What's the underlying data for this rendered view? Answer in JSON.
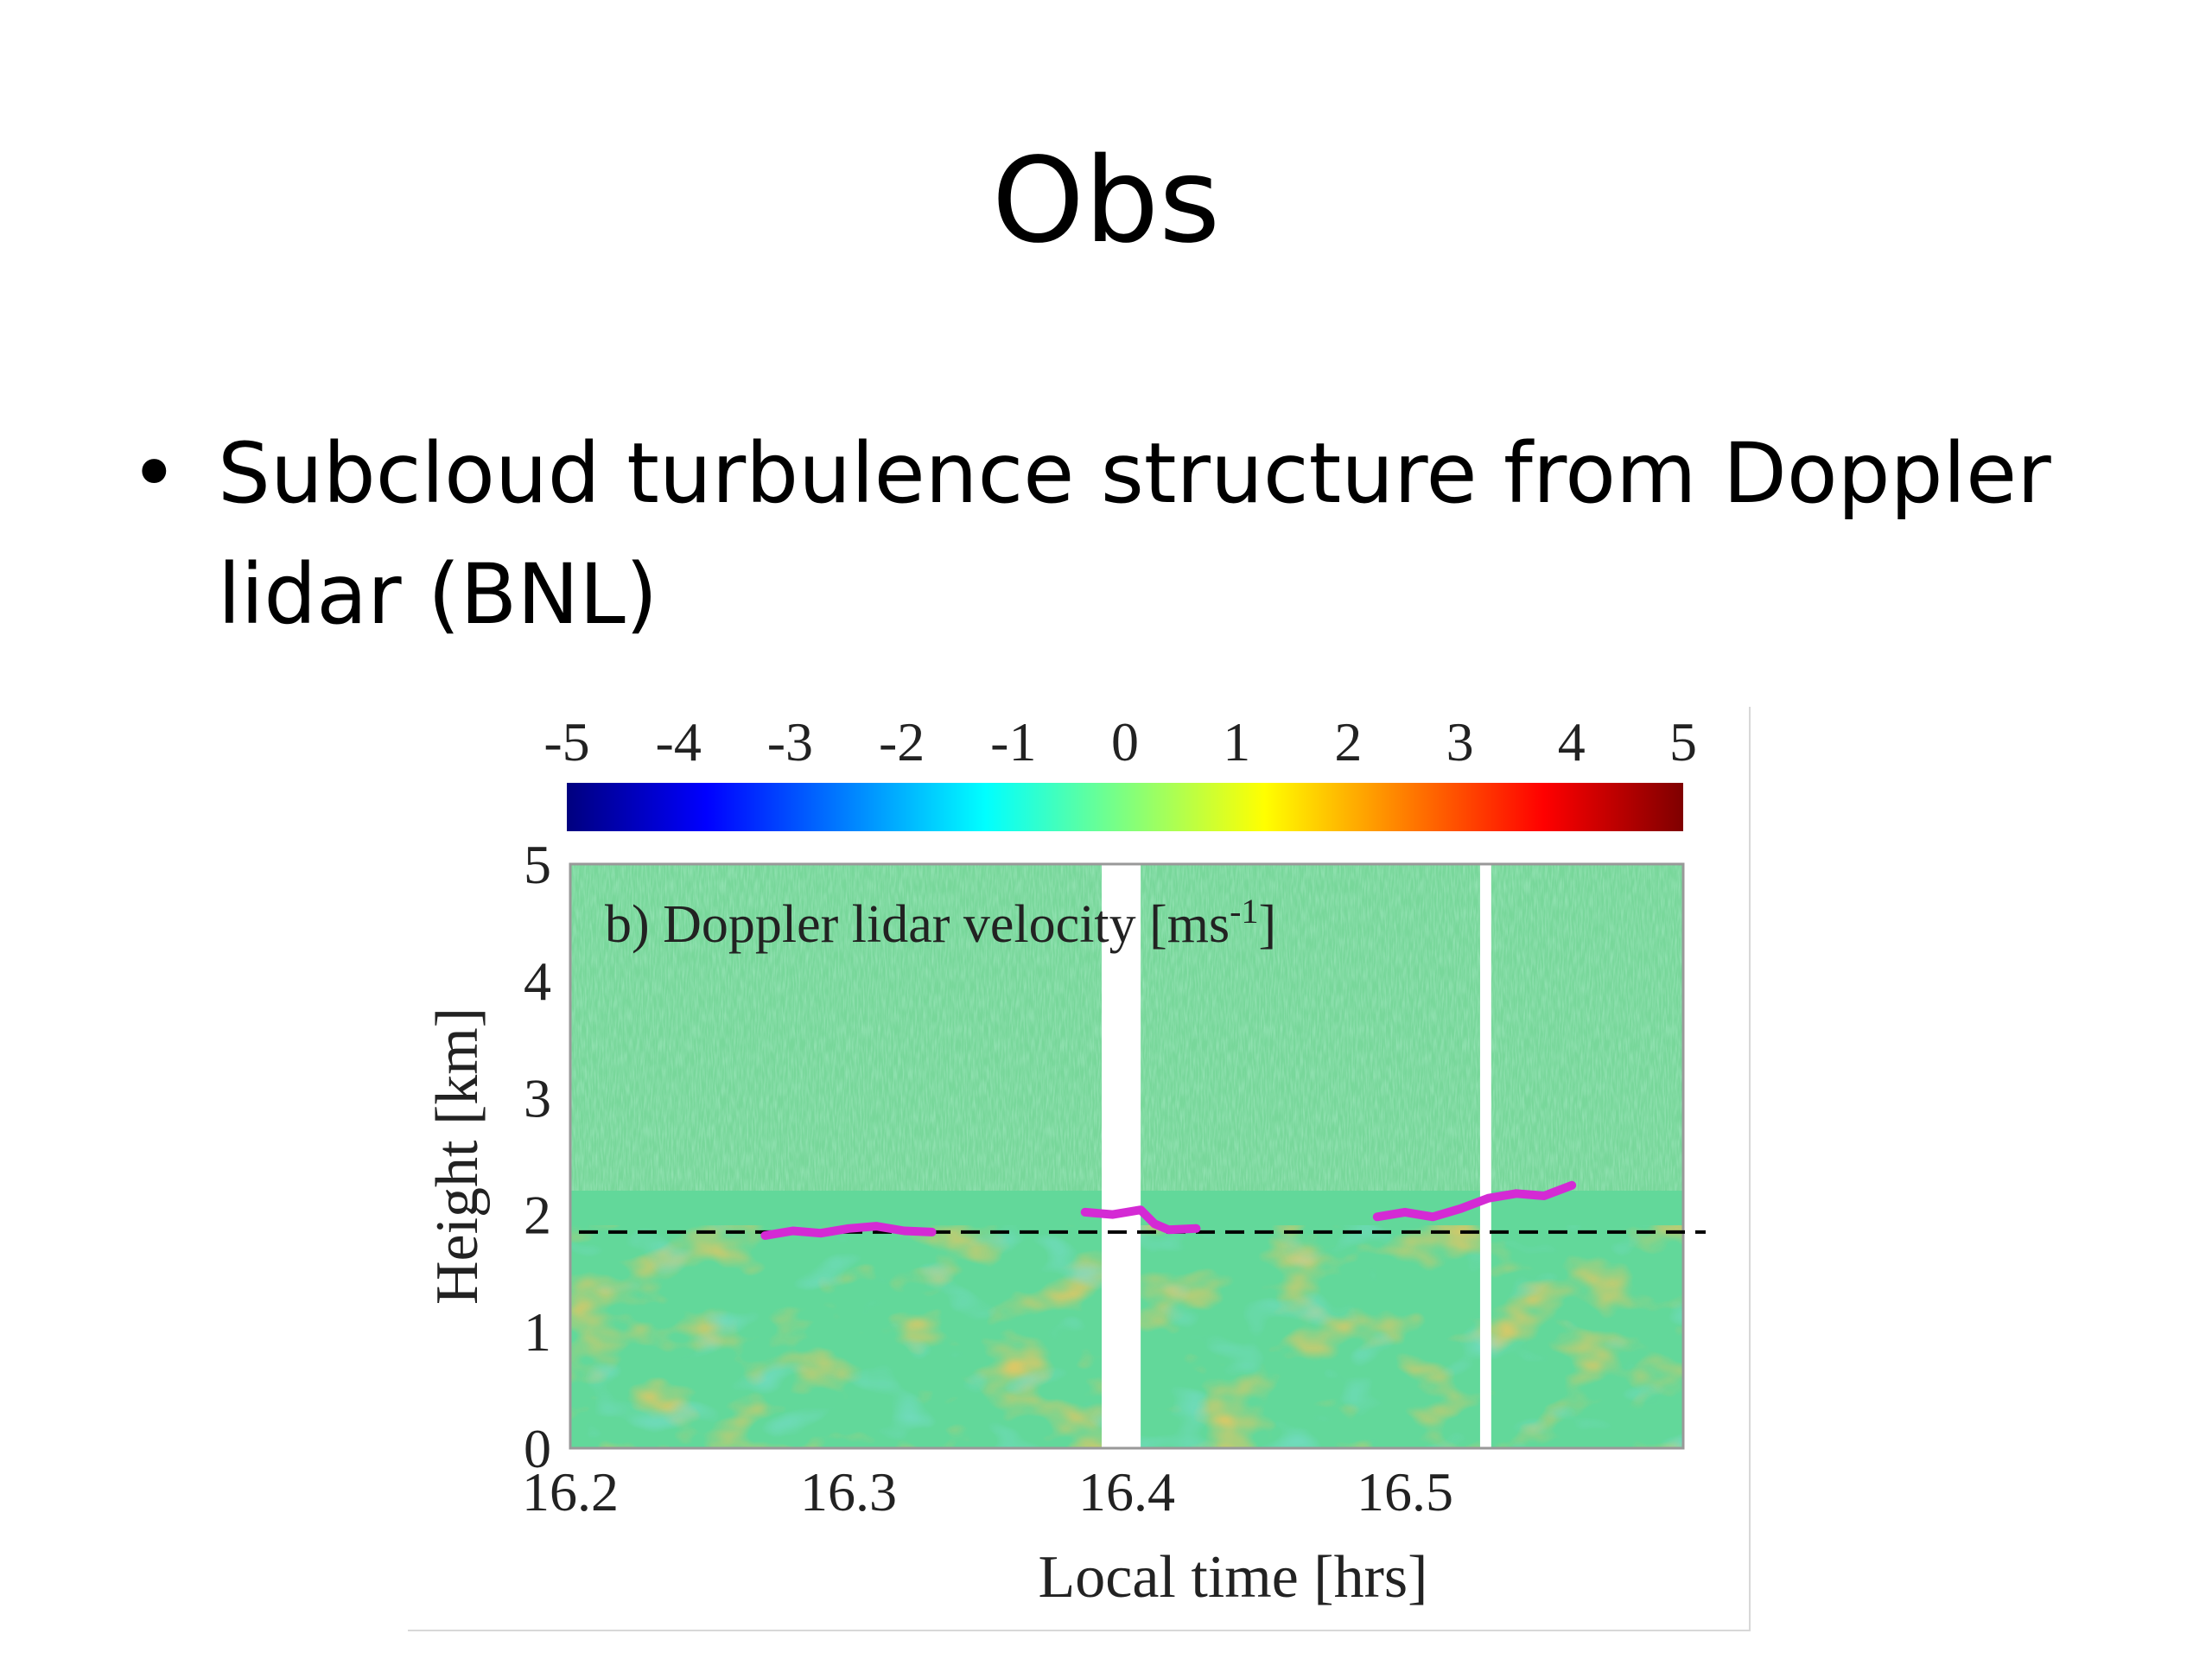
{
  "slide": {
    "title": "Obs",
    "bullet": {
      "marker": "•",
      "line1": "Subcloud turbulence structure from Doppler",
      "line2": "lidar (BNL)"
    }
  },
  "chart_data": {
    "type": "heatmap",
    "title": "b) Doppler lidar velocity [ms",
    "title_superscript": "-1",
    "title_close": "]",
    "xlabel": "Local time [hrs]",
    "ylabel": "Height [km]",
    "xlim": [
      16.2,
      16.6
    ],
    "ylim": [
      0,
      5
    ],
    "x_ticks": [
      "16.2",
      "16.3",
      "16.4",
      "16.5"
    ],
    "x_tick_values": [
      16.2,
      16.3,
      16.4,
      16.5
    ],
    "y_ticks": [
      "0",
      "1",
      "2",
      "3",
      "4",
      "5"
    ],
    "y_tick_values": [
      0,
      1,
      2,
      3,
      4,
      5
    ],
    "colorbar": {
      "ticks": [
        "-5",
        "-4",
        "-3",
        "-2",
        "-1",
        "0",
        "1",
        "2",
        "3",
        "4",
        "5"
      ],
      "tick_values": [
        -5,
        -4,
        -3,
        -2,
        -1,
        0,
        1,
        2,
        3,
        4,
        5
      ],
      "range": [
        -5,
        5
      ],
      "colormap": [
        "#00007f",
        "#0000ff",
        "#007fff",
        "#00ffff",
        "#7fff7f",
        "#ffff00",
        "#ff7f00",
        "#ff0000",
        "#7f0000"
      ]
    },
    "dashed_line": {
      "height_km": 1.85,
      "color": "#000000"
    },
    "data_gaps_hrs": [
      [
        16.391,
        16.405
      ],
      [
        16.527,
        16.531
      ]
    ],
    "cloud_base_segments": [
      {
        "color": "#d42ad4",
        "points": [
          [
            16.27,
            1.82
          ],
          [
            16.28,
            1.86
          ],
          [
            16.29,
            1.84
          ],
          [
            16.3,
            1.88
          ],
          [
            16.31,
            1.9
          ],
          [
            16.32,
            1.86
          ],
          [
            16.33,
            1.85
          ]
        ]
      },
      {
        "color": "#d42ad4",
        "points": [
          [
            16.385,
            2.02
          ],
          [
            16.395,
            2.0
          ],
          [
            16.405,
            2.04
          ],
          [
            16.41,
            1.92
          ],
          [
            16.415,
            1.87
          ],
          [
            16.425,
            1.88
          ]
        ]
      },
      {
        "color": "#d42ad4",
        "points": [
          [
            16.49,
            1.98
          ],
          [
            16.5,
            2.02
          ],
          [
            16.51,
            1.98
          ],
          [
            16.52,
            2.05
          ],
          [
            16.53,
            2.14
          ],
          [
            16.54,
            2.18
          ],
          [
            16.55,
            2.16
          ],
          [
            16.56,
            2.25
          ]
        ]
      }
    ],
    "background_colors": {
      "upper_mean": "#7fd99a",
      "lower_mean": "#5fd694"
    }
  }
}
